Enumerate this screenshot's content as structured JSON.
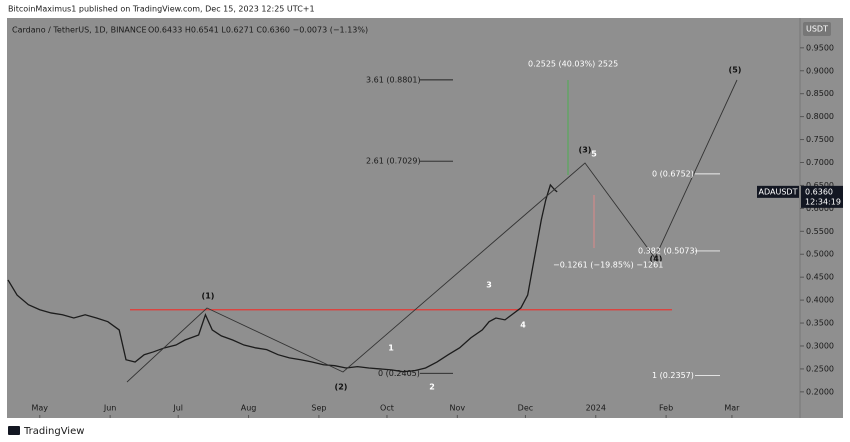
{
  "header": {
    "publisher": "BitcoinMaximus1 published on TradingView.com, Dec 15, 2023 12:25 UTC+1",
    "symbol_info": "Cardano / TetherUS, 1D, BINANCE",
    "ohlc": "O0.6433 H0.6541 L0.6271 C0.6360 −0.0073 (−1.13%)"
  },
  "chart_data": {
    "type": "line",
    "x": [
      -14,
      -10,
      -5,
      0,
      5,
      10,
      15,
      20,
      25,
      30,
      35,
      38,
      42,
      46,
      50,
      55,
      60,
      64,
      70,
      73,
      76,
      80,
      85,
      90,
      95,
      100,
      105,
      110,
      115,
      120,
      125,
      130,
      135,
      140,
      145,
      150,
      155,
      160,
      165,
      170,
      175,
      180,
      185,
      190,
      195,
      198,
      201,
      205,
      208,
      212,
      215,
      217,
      219,
      221,
      223,
      225,
      227,
      228
    ],
    "series": [
      {
        "name": "ADAUSDT",
        "color": "#1c1c1c",
        "values": [
          0.444,
          0.411,
          0.39,
          0.379,
          0.372,
          0.368,
          0.361,
          0.368,
          0.361,
          0.353,
          0.335,
          0.27,
          0.265,
          0.281,
          0.287,
          0.296,
          0.302,
          0.313,
          0.324,
          0.368,
          0.335,
          0.322,
          0.313,
          0.302,
          0.296,
          0.292,
          0.281,
          0.274,
          0.27,
          0.265,
          0.259,
          0.257,
          0.252,
          0.255,
          0.252,
          0.25,
          0.248,
          0.244,
          0.246,
          0.252,
          0.265,
          0.281,
          0.296,
          0.318,
          0.335,
          0.353,
          0.361,
          0.357,
          0.368,
          0.383,
          0.411,
          0.466,
          0.52,
          0.575,
          0.619,
          0.651,
          0.64,
          0.636
        ]
      }
    ],
    "xlim": [
      -14,
      335
    ],
    "ylim": [
      0.143,
      1.015
    ],
    "xticks": [
      {
        "value": 0,
        "label": "May"
      },
      {
        "value": 31,
        "label": "Jun"
      },
      {
        "value": 61,
        "label": "Jul"
      },
      {
        "value": 92,
        "label": "Aug"
      },
      {
        "value": 123,
        "label": "Sep"
      },
      {
        "value": 153,
        "label": "Oct"
      },
      {
        "value": 184,
        "label": "Nov"
      },
      {
        "value": 214,
        "label": "Dec"
      },
      {
        "value": 245,
        "label": "2024"
      },
      {
        "value": 276,
        "label": "Feb"
      },
      {
        "value": 305,
        "label": "Mar"
      }
    ],
    "yticks": [
      {
        "value": 0.2,
        "label": "0.2000"
      },
      {
        "value": 0.25,
        "label": "0.2500"
      },
      {
        "value": 0.3,
        "label": "0.3000"
      },
      {
        "value": 0.35,
        "label": "0.3500"
      },
      {
        "value": 0.4,
        "label": "0.4000"
      },
      {
        "value": 0.45,
        "label": "0.4500"
      },
      {
        "value": 0.5,
        "label": "0.5000"
      },
      {
        "value": 0.55,
        "label": "0.5500"
      },
      {
        "value": 0.6,
        "label": "0.6000"
      },
      {
        "value": 0.65,
        "label": "0.6500"
      },
      {
        "value": 0.7,
        "label": "0.7000"
      },
      {
        "value": 0.75,
        "label": "0.7500"
      },
      {
        "value": 0.8,
        "label": "0.8000"
      },
      {
        "value": 0.85,
        "label": "0.8500"
      },
      {
        "value": 0.9,
        "label": "0.9000"
      },
      {
        "value": 0.95,
        "label": "0.9500"
      }
    ],
    "axis_unit": "USDT",
    "last_price": {
      "value": 0.636,
      "label": "0.6360"
    },
    "countdown": "12:34:19",
    "resistance_level": 0.379,
    "fib_levels": [
      {
        "value": 0.8801,
        "label": "3.61 (0.8801)"
      },
      {
        "value": 0.7029,
        "label": "2.61 (0.7029)"
      },
      {
        "value": 0.2405,
        "label": "0 (0.2405)"
      },
      {
        "value": 0.6752,
        "label": "0 (0.6752)"
      },
      {
        "value": 0.5073,
        "label": "0.382 (0.5073)"
      },
      {
        "value": 0.2357,
        "label": "1 (0.2357)"
      }
    ],
    "wave_labels": [
      "(1)",
      "(2)",
      "1",
      "2",
      "3",
      "4",
      "(3)",
      "5",
      "(4)",
      "(5)"
    ],
    "measurements": [
      "0.2525 (40.03%) 2525",
      "−0.1261 (−19.85%) −1261"
    ]
  },
  "footer": "TradingView"
}
